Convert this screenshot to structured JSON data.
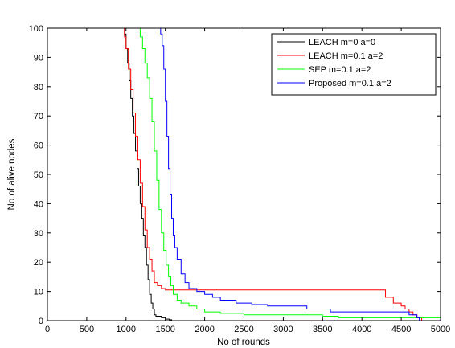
{
  "chart_data": {
    "type": "line",
    "title": "",
    "xlabel": "No of rounds",
    "ylabel": "No of alive nodes",
    "xlim": [
      0,
      5000
    ],
    "ylim": [
      0,
      100
    ],
    "xticks": [
      0,
      500,
      1000,
      1500,
      2000,
      2500,
      3000,
      3500,
      4000,
      4500,
      5000
    ],
    "yticks": [
      0,
      10,
      20,
      30,
      40,
      50,
      60,
      70,
      80,
      90,
      100
    ],
    "grid": false,
    "legend_position": "top-right",
    "series": [
      {
        "name": "LEACH m=0 a=0",
        "color": "#000000",
        "x": [
          0,
          950,
          980,
          1000,
          1020,
          1040,
          1060,
          1080,
          1100,
          1120,
          1140,
          1160,
          1180,
          1200,
          1220,
          1240,
          1260,
          1280,
          1300,
          1320,
          1340,
          1360,
          1380,
          1400,
          1450,
          1500,
          1550,
          1580
        ],
        "y": [
          100,
          100,
          98,
          93,
          88,
          82,
          76,
          70,
          64,
          58,
          52,
          46,
          40,
          35,
          29,
          25,
          19,
          14,
          9,
          6,
          4,
          2,
          1.5,
          1.5,
          1,
          0.5,
          0.3,
          0
        ]
      },
      {
        "name": "LEACH m=0.1 a=2",
        "color": "#ff0000",
        "x": [
          0,
          950,
          980,
          1000,
          1030,
          1060,
          1090,
          1120,
          1150,
          1180,
          1210,
          1240,
          1270,
          1300,
          1330,
          1360,
          1400,
          1450,
          1500,
          1550,
          4200,
          4300,
          4400,
          4500,
          4550,
          4600,
          4650,
          4700,
          4760
        ],
        "y": [
          100,
          100,
          97,
          93,
          86,
          79,
          71,
          63,
          55,
          47,
          39,
          31,
          25,
          21,
          17,
          13,
          12,
          11,
          10.5,
          10.5,
          10.5,
          8,
          6,
          5,
          4,
          3,
          2,
          1,
          0
        ]
      },
      {
        "name": "SEP m=0.1 a=2",
        "color": "#00ff00",
        "x": [
          0,
          1150,
          1180,
          1210,
          1240,
          1270,
          1300,
          1330,
          1360,
          1390,
          1420,
          1450,
          1480,
          1510,
          1540,
          1570,
          1600,
          1650,
          1700,
          1800,
          1900,
          2000,
          2200,
          2500,
          3000,
          3500,
          3700,
          4000,
          4500,
          4800,
          5000
        ],
        "y": [
          100,
          100,
          97,
          93,
          88,
          83,
          76,
          68,
          58,
          48,
          38,
          30,
          24,
          19,
          15,
          12,
          9,
          7,
          6,
          5,
          4,
          3,
          2.5,
          2,
          2,
          1.5,
          1,
          1,
          1,
          1,
          1
        ]
      },
      {
        "name": "Proposed m=0.1 a=2",
        "color": "#0000ff",
        "x": [
          0,
          1420,
          1440,
          1460,
          1480,
          1500,
          1520,
          1540,
          1560,
          1580,
          1600,
          1620,
          1650,
          1700,
          1750,
          1800,
          1900,
          2000,
          2100,
          2200,
          2400,
          2600,
          2800,
          3000,
          3300,
          3600,
          4000,
          4300,
          4500,
          4600,
          4700,
          4730
        ],
        "y": [
          100,
          100,
          98,
          94,
          86,
          75,
          63,
          52,
          43,
          35,
          29,
          25,
          21,
          16,
          13,
          11,
          10,
          9,
          8,
          7,
          6,
          5.5,
          5,
          5,
          4,
          3,
          3,
          3,
          3,
          2,
          1,
          0
        ]
      }
    ]
  }
}
